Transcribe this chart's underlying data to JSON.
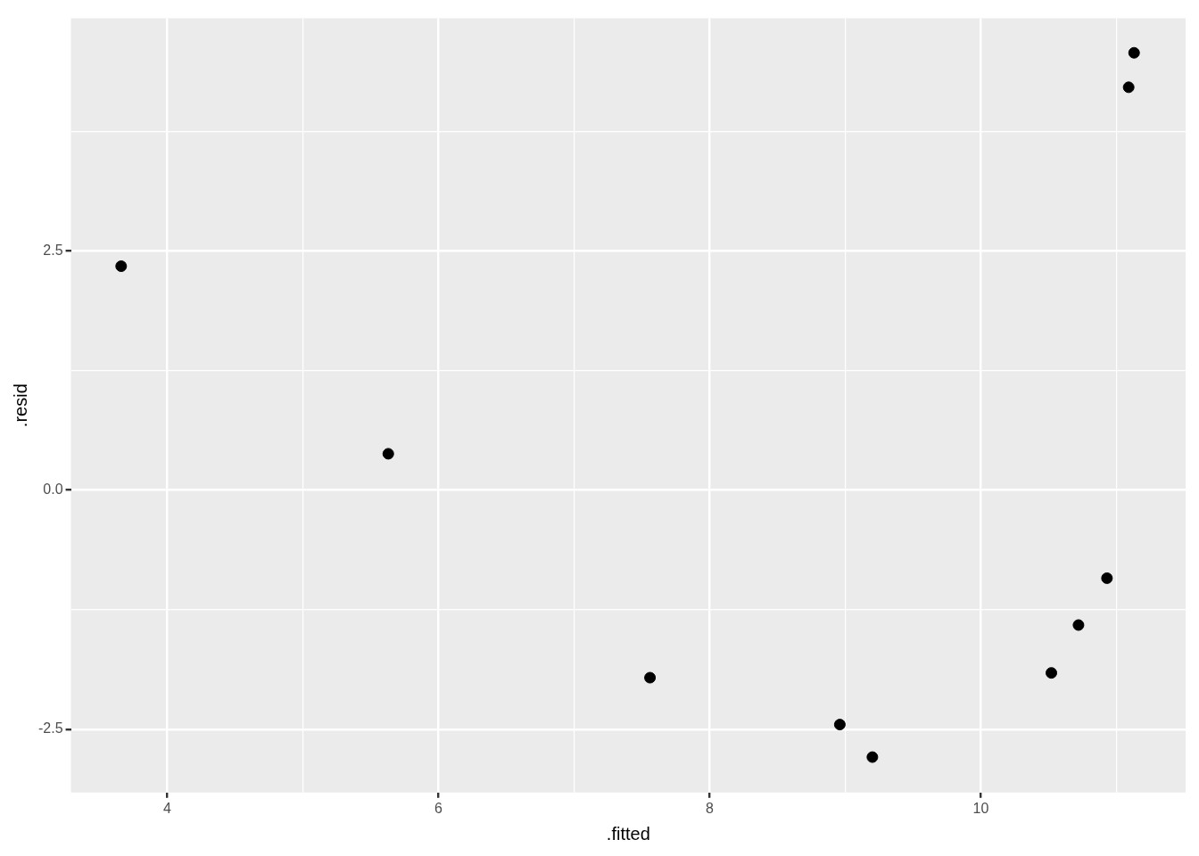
{
  "chart_data": {
    "type": "scatter",
    "xlabel": ".fitted",
    "ylabel": ".resid",
    "x": [
      3.66,
      5.63,
      7.56,
      8.96,
      9.2,
      10.52,
      10.72,
      10.93,
      11.09,
      11.13
    ],
    "values": [
      2.34,
      0.38,
      -1.96,
      -2.45,
      -2.79,
      -1.91,
      -1.41,
      -0.92,
      4.21,
      4.57
    ],
    "color": "#000000",
    "marker": "circle",
    "xlim": [
      3.29,
      11.51
    ],
    "ylim": [
      -3.16,
      4.93
    ],
    "xticks": [
      4,
      {
        "value": 5,
        "label": null
      },
      6,
      {
        "value": 7,
        "label": null
      },
      8,
      {
        "value": 9,
        "label": null
      },
      10,
      {
        "value": 11,
        "label": null
      }
    ],
    "yticks": [
      {
        "value": -2.5,
        "label": "-2.5"
      },
      {
        "value": -1.25,
        "label": null
      },
      {
        "value": 0,
        "label": "0.0"
      },
      {
        "value": 1.25,
        "label": null
      },
      2.5,
      {
        "value": 3.75,
        "label": null
      }
    ],
    "grid": true,
    "legend": false
  }
}
